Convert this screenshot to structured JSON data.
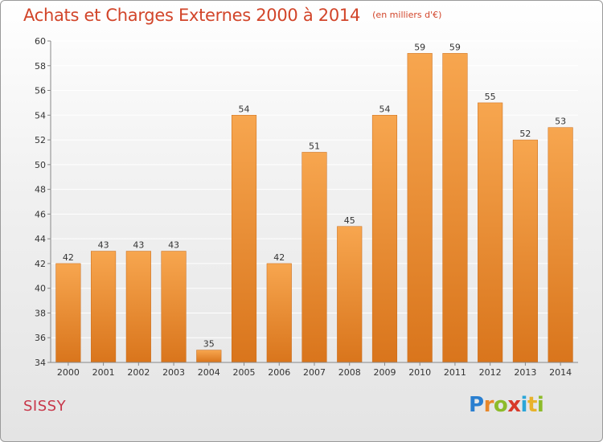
{
  "header": {
    "title": "Achats et Charges Externes 2000 à 2014",
    "subtitle": "(en milliers d'€)"
  },
  "footer": {
    "commune": "SISSY",
    "brand_letters": [
      {
        "ch": "P",
        "color": "#2a7fd0"
      },
      {
        "ch": "r",
        "color": "#e8872a"
      },
      {
        "ch": "o",
        "color": "#8dbb2a"
      },
      {
        "ch": "x",
        "color": "#d83a2a"
      },
      {
        "ch": "i",
        "color": "#2aa6d8"
      },
      {
        "ch": "t",
        "color": "#e8b22a"
      },
      {
        "ch": "i",
        "color": "#8dbb2a"
      }
    ]
  },
  "colors": {
    "bar_top": "#f7a64f",
    "bar_bottom": "#d9751c",
    "bar_edge": "#c86a18",
    "grid": "#ffffff",
    "axis": "#888888",
    "title": "#d2452a",
    "commune": "#c8374a"
  },
  "chart_data": {
    "type": "bar",
    "title": "Achats et Charges Externes 2000 à 2014",
    "subtitle": "(en milliers d'€)",
    "xlabel": "",
    "ylabel": "",
    "categories": [
      "2000",
      "2001",
      "2002",
      "2003",
      "2004",
      "2005",
      "2006",
      "2007",
      "2008",
      "2009",
      "2010",
      "2011",
      "2012",
      "2013",
      "2014"
    ],
    "values": [
      42,
      43,
      43,
      43,
      35,
      54,
      42,
      51,
      45,
      54,
      59,
      59,
      55,
      52,
      53
    ],
    "ylim": [
      34,
      60
    ],
    "yticks": [
      34,
      36,
      38,
      40,
      42,
      44,
      46,
      48,
      50,
      52,
      54,
      56,
      58,
      60
    ],
    "grid": true,
    "legend": "none"
  }
}
